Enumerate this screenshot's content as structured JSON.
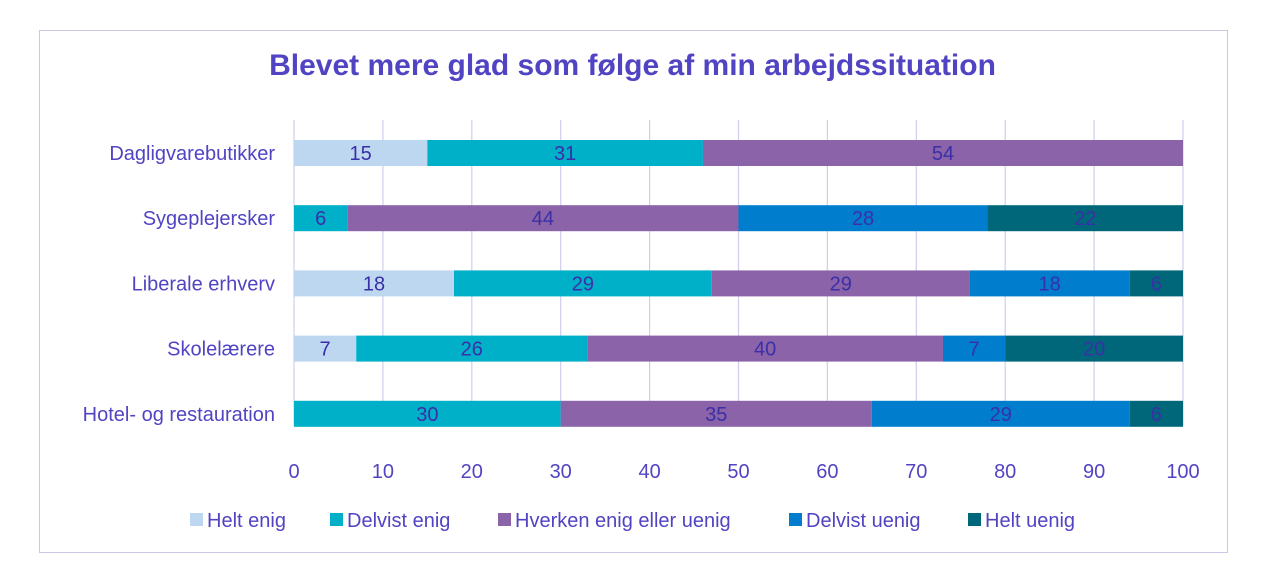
{
  "chart_data": {
    "type": "bar",
    "orientation": "horizontal",
    "stacked": true,
    "title": "Blevet mere glad som følge af min arbejdssituation",
    "categories": [
      "Dagligvarebutikker",
      "Sygeplejersker",
      "Liberale erhverv",
      "Skolelærere",
      "Hotel- og restauration"
    ],
    "series": [
      {
        "name": "Helt enig",
        "color": "#bdd7f0",
        "values": [
          15,
          0,
          18,
          7,
          0
        ]
      },
      {
        "name": "Delvist enig",
        "color": "#00afc8",
        "values": [
          31,
          6,
          29,
          26,
          30
        ]
      },
      {
        "name": "Hverken enig eller uenig",
        "color": "#8a63a9",
        "values": [
          54,
          44,
          29,
          40,
          35
        ]
      },
      {
        "name": "Delvist uenig",
        "color": "#007ecd",
        "values": [
          0,
          28,
          18,
          7,
          29
        ]
      },
      {
        "name": "Helt uenig",
        "color": "#00677a",
        "values": [
          0,
          22,
          6,
          20,
          6
        ]
      }
    ],
    "xlim": [
      0,
      100
    ],
    "xticks": [
      0,
      10,
      20,
      30,
      40,
      50,
      60,
      70,
      80,
      90,
      100
    ],
    "grid": true,
    "legend": "bottom",
    "data_labels": true
  }
}
